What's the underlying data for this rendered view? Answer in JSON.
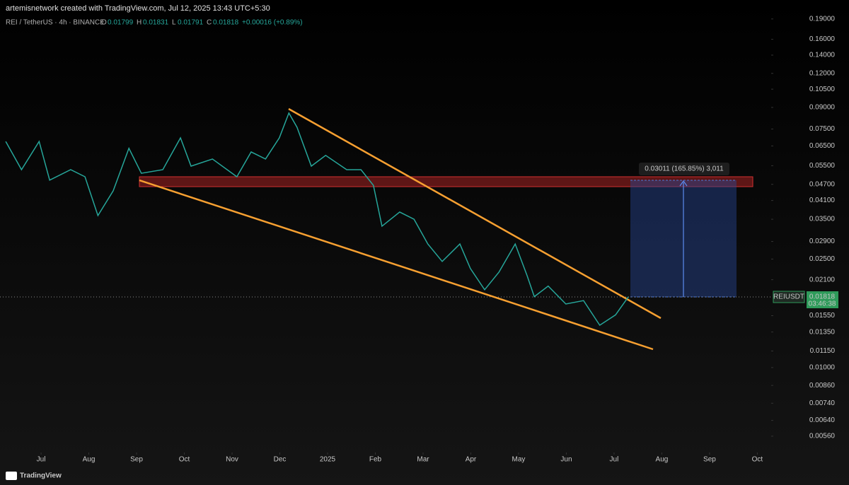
{
  "chart_data": {
    "type": "line",
    "title": "artemisnetwork created with TradingView.com, Jul 12, 2025 13:43 UTC+5:30",
    "subtitle": "REI / TetherUS · 4h · BINANCE",
    "ohlc": {
      "o_label": "O",
      "o": "0.01799",
      "h_label": "H",
      "h": "0.01831",
      "l_label": "L",
      "l": "0.01791",
      "c_label": "C",
      "c": "0.01818",
      "change": "+0.00016 (+0.89%)"
    },
    "price_tag": {
      "symbol": "REIUSDT",
      "countdown": "03:46:38"
    },
    "measure_label": "0.03011 (165.85%) 3,011",
    "footer": "TradingView",
    "log_scale": true,
    "grid": false,
    "series": [
      {
        "name": "REIUSDT",
        "color": "#26a69a",
        "x": [
          -0.74,
          -0.41,
          -0.04,
          0.18,
          0.62,
          0.92,
          1.19,
          1.51,
          1.84,
          2.1,
          2.55,
          2.92,
          3.14,
          3.59,
          4.1,
          4.4,
          4.7,
          4.99,
          5.19,
          5.36,
          5.66,
          5.96,
          6.4,
          6.7,
          6.96,
          7.14,
          7.51,
          7.81,
          8.1,
          8.4,
          8.77,
          8.99,
          9.29,
          9.59,
          9.93,
          10.18,
          10.33,
          10.62,
          10.99,
          11.36,
          11.7,
          12.03,
          12.3
        ],
        "values": [
          0.0675,
          0.0532,
          0.0675,
          0.0487,
          0.0532,
          0.0501,
          0.0361,
          0.0445,
          0.0637,
          0.0516,
          0.0532,
          0.0696,
          0.0548,
          0.0582,
          0.0501,
          0.0618,
          0.0582,
          0.0696,
          0.0858,
          0.0761,
          0.0548,
          0.06,
          0.0532,
          0.0532,
          0.0466,
          0.033,
          0.0372,
          0.035,
          0.0284,
          0.0245,
          0.0284,
          0.0231,
          0.0193,
          0.0224,
          0.0284,
          0.0217,
          0.0182,
          0.0199,
          0.0171,
          0.0176,
          0.0143,
          0.0156,
          0.01818
        ],
        "value_labels": [
          null,
          null,
          null,
          null,
          null,
          null,
          null,
          null,
          null,
          null,
          null,
          null,
          null,
          null,
          null,
          null,
          null,
          null,
          null,
          null,
          null,
          null,
          null,
          null,
          null,
          null,
          null,
          null,
          null,
          null,
          null,
          null,
          null,
          null,
          null,
          null,
          null,
          null,
          null,
          null,
          null,
          null,
          "0.01818"
        ]
      }
    ],
    "xlim": [
      -0.86,
      15.29
    ],
    "xticks": [
      {
        "value": 0,
        "label": "Jul"
      },
      {
        "value": 1,
        "label": "Aug"
      },
      {
        "value": 2,
        "label": "Sep"
      },
      {
        "value": 3,
        "label": "Oct"
      },
      {
        "value": 4,
        "label": "Nov"
      },
      {
        "value": 5,
        "label": "Dec"
      },
      {
        "value": 6,
        "label": "2025"
      },
      {
        "value": 7,
        "label": "Feb"
      },
      {
        "value": 8,
        "label": "Mar"
      },
      {
        "value": 9,
        "label": "Apr"
      },
      {
        "value": 10,
        "label": "May"
      },
      {
        "value": 11,
        "label": "Jun"
      },
      {
        "value": 12,
        "label": "Jul"
      },
      {
        "value": 13,
        "label": "Aug"
      },
      {
        "value": 14,
        "label": "Sep"
      },
      {
        "value": 15,
        "label": "Oct"
      }
    ],
    "ylim": [
      0.00488,
      0.223
    ],
    "yticks": [
      {
        "value": 0.19,
        "label": "0.19000"
      },
      {
        "value": 0.16,
        "label": "0.16000"
      },
      {
        "value": 0.14,
        "label": "0.14000"
      },
      {
        "value": 0.12,
        "label": "0.12000"
      },
      {
        "value": 0.105,
        "label": "0.10500"
      },
      {
        "value": 0.09,
        "label": "0.09000"
      },
      {
        "value": 0.075,
        "label": "0.07500"
      },
      {
        "value": 0.065,
        "label": "0.06500"
      },
      {
        "value": 0.055,
        "label": "0.05500"
      },
      {
        "value": 0.047,
        "label": "0.04700"
      },
      {
        "value": 0.041,
        "label": "0.04100"
      },
      {
        "value": 0.035,
        "label": "0.03500"
      },
      {
        "value": 0.029,
        "label": "0.02900"
      },
      {
        "value": 0.025,
        "label": "0.02500"
      },
      {
        "value": 0.021,
        "label": "0.02100"
      },
      {
        "value": 0.0155,
        "label": "0.01550"
      },
      {
        "value": 0.0135,
        "label": "0.01350"
      },
      {
        "value": 0.0115,
        "label": "0.01150"
      },
      {
        "value": 0.01,
        "label": "0.01000"
      },
      {
        "value": 0.0086,
        "label": "0.00860"
      },
      {
        "value": 0.0074,
        "label": "0.00740"
      },
      {
        "value": 0.0064,
        "label": "0.00640"
      },
      {
        "value": 0.0056,
        "label": "0.00560"
      }
    ]
  }
}
